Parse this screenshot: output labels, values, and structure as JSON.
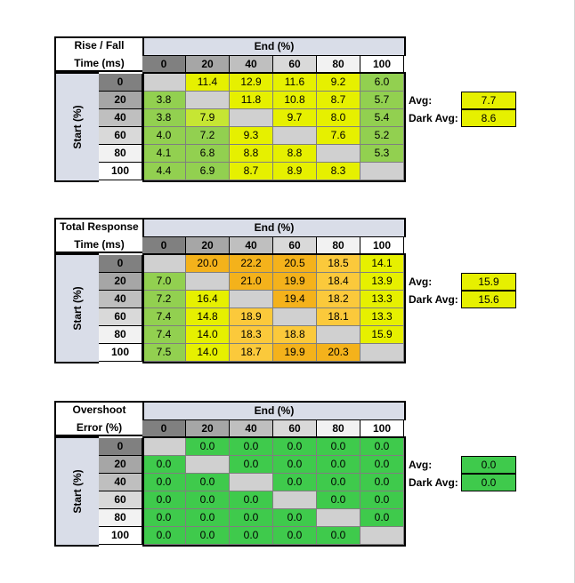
{
  "column_headers": [
    "0",
    "20",
    "40",
    "60",
    "80",
    "100"
  ],
  "row_headers": [
    "0",
    "20",
    "40",
    "60",
    "80",
    "100"
  ],
  "end_label": "End (%)",
  "start_label": "Start (%)",
  "avg_label": "Avg:",
  "dark_avg_label": "Dark Avg:",
  "header_shades": [
    "#808080",
    "#a6a6a6",
    "#bfbfbf",
    "#d9d9d9",
    "#f2f2f2",
    "#ffffff"
  ],
  "colors": {
    "green_light": "#92d050",
    "yellow": "#e6f000",
    "yellow_green": "#c6e633",
    "orange": "#f4b21b",
    "orange_light": "#fbc93b",
    "green": "#3fca4c",
    "empty": "#d0d0d0",
    "header_blue": "#d9dde8"
  },
  "tables": [
    {
      "title_line1": "Rise / Fall",
      "title_line2": "Time (ms)",
      "avg": "7.7",
      "dark_avg": "8.6",
      "stat_color": "#e6f000",
      "rows": [
        [
          "",
          "11.4",
          "12.9",
          "11.6",
          "9.2",
          "6.0"
        ],
        [
          "3.8",
          "",
          "11.8",
          "10.8",
          "8.7",
          "5.7"
        ],
        [
          "3.8",
          "7.9",
          "",
          "9.7",
          "8.0",
          "5.4"
        ],
        [
          "4.0",
          "7.2",
          "9.3",
          "",
          "7.6",
          "5.2"
        ],
        [
          "4.1",
          "6.8",
          "8.8",
          "8.8",
          "",
          "5.3"
        ],
        [
          "4.4",
          "6.9",
          "8.7",
          "8.9",
          "8.3",
          ""
        ]
      ],
      "cell_colors": [
        [
          "#d0d0d0",
          "#e6f000",
          "#e6f000",
          "#e6f000",
          "#e6f000",
          "#92d050"
        ],
        [
          "#92d050",
          "#d0d0d0",
          "#e6f000",
          "#e6f000",
          "#e6f000",
          "#92d050"
        ],
        [
          "#92d050",
          "#c6e633",
          "#d0d0d0",
          "#e6f000",
          "#e6f000",
          "#92d050"
        ],
        [
          "#92d050",
          "#92d050",
          "#e6f000",
          "#d0d0d0",
          "#e6f000",
          "#92d050"
        ],
        [
          "#92d050",
          "#92d050",
          "#e6f000",
          "#e6f000",
          "#d0d0d0",
          "#92d050"
        ],
        [
          "#92d050",
          "#92d050",
          "#e6f000",
          "#e6f000",
          "#e6f000",
          "#d0d0d0"
        ]
      ]
    },
    {
      "title_line1": "Total Response",
      "title_line2": "Time (ms)",
      "avg": "15.9",
      "dark_avg": "15.6",
      "stat_color": "#e6f000",
      "rows": [
        [
          "",
          "20.0",
          "22.2",
          "20.5",
          "18.5",
          "14.1"
        ],
        [
          "7.0",
          "",
          "21.0",
          "19.9",
          "18.4",
          "13.9"
        ],
        [
          "7.2",
          "16.4",
          "",
          "19.4",
          "18.2",
          "13.3"
        ],
        [
          "7.4",
          "14.8",
          "18.9",
          "",
          "18.1",
          "13.3"
        ],
        [
          "7.4",
          "14.0",
          "18.3",
          "18.8",
          "",
          "15.9"
        ],
        [
          "7.5",
          "14.0",
          "18.7",
          "19.9",
          "20.3",
          ""
        ]
      ],
      "cell_colors": [
        [
          "#d0d0d0",
          "#f4b21b",
          "#f4b21b",
          "#f4b21b",
          "#fbc93b",
          "#e6f000"
        ],
        [
          "#92d050",
          "#d0d0d0",
          "#f4b21b",
          "#f4b21b",
          "#fbc93b",
          "#e6f000"
        ],
        [
          "#92d050",
          "#e6f000",
          "#d0d0d0",
          "#f4b21b",
          "#fbc93b",
          "#e6f000"
        ],
        [
          "#92d050",
          "#e6f000",
          "#fbc93b",
          "#d0d0d0",
          "#fbc93b",
          "#e6f000"
        ],
        [
          "#92d050",
          "#e6f000",
          "#fbc93b",
          "#fbc93b",
          "#d0d0d0",
          "#e6f000"
        ],
        [
          "#92d050",
          "#e6f000",
          "#fbc93b",
          "#f4b21b",
          "#f4b21b",
          "#d0d0d0"
        ]
      ]
    },
    {
      "title_line1": "Overshoot",
      "title_line2": "Error (%)",
      "avg": "0.0",
      "dark_avg": "0.0",
      "stat_color": "#3fca4c",
      "rows": [
        [
          "",
          "0.0",
          "0.0",
          "0.0",
          "0.0",
          "0.0"
        ],
        [
          "0.0",
          "",
          "0.0",
          "0.0",
          "0.0",
          "0.0"
        ],
        [
          "0.0",
          "0.0",
          "",
          "0.0",
          "0.0",
          "0.0"
        ],
        [
          "0.0",
          "0.0",
          "0.0",
          "",
          "0.0",
          "0.0"
        ],
        [
          "0.0",
          "0.0",
          "0.0",
          "0.0",
          "",
          "0.0"
        ],
        [
          "0.0",
          "0.0",
          "0.0",
          "0.0",
          "0.0",
          ""
        ]
      ],
      "cell_colors": [
        [
          "#d0d0d0",
          "#3fca4c",
          "#3fca4c",
          "#3fca4c",
          "#3fca4c",
          "#3fca4c"
        ],
        [
          "#3fca4c",
          "#d0d0d0",
          "#3fca4c",
          "#3fca4c",
          "#3fca4c",
          "#3fca4c"
        ],
        [
          "#3fca4c",
          "#3fca4c",
          "#d0d0d0",
          "#3fca4c",
          "#3fca4c",
          "#3fca4c"
        ],
        [
          "#3fca4c",
          "#3fca4c",
          "#3fca4c",
          "#d0d0d0",
          "#3fca4c",
          "#3fca4c"
        ],
        [
          "#3fca4c",
          "#3fca4c",
          "#3fca4c",
          "#3fca4c",
          "#d0d0d0",
          "#3fca4c"
        ],
        [
          "#3fca4c",
          "#3fca4c",
          "#3fca4c",
          "#3fca4c",
          "#3fca4c",
          "#d0d0d0"
        ]
      ]
    }
  ]
}
